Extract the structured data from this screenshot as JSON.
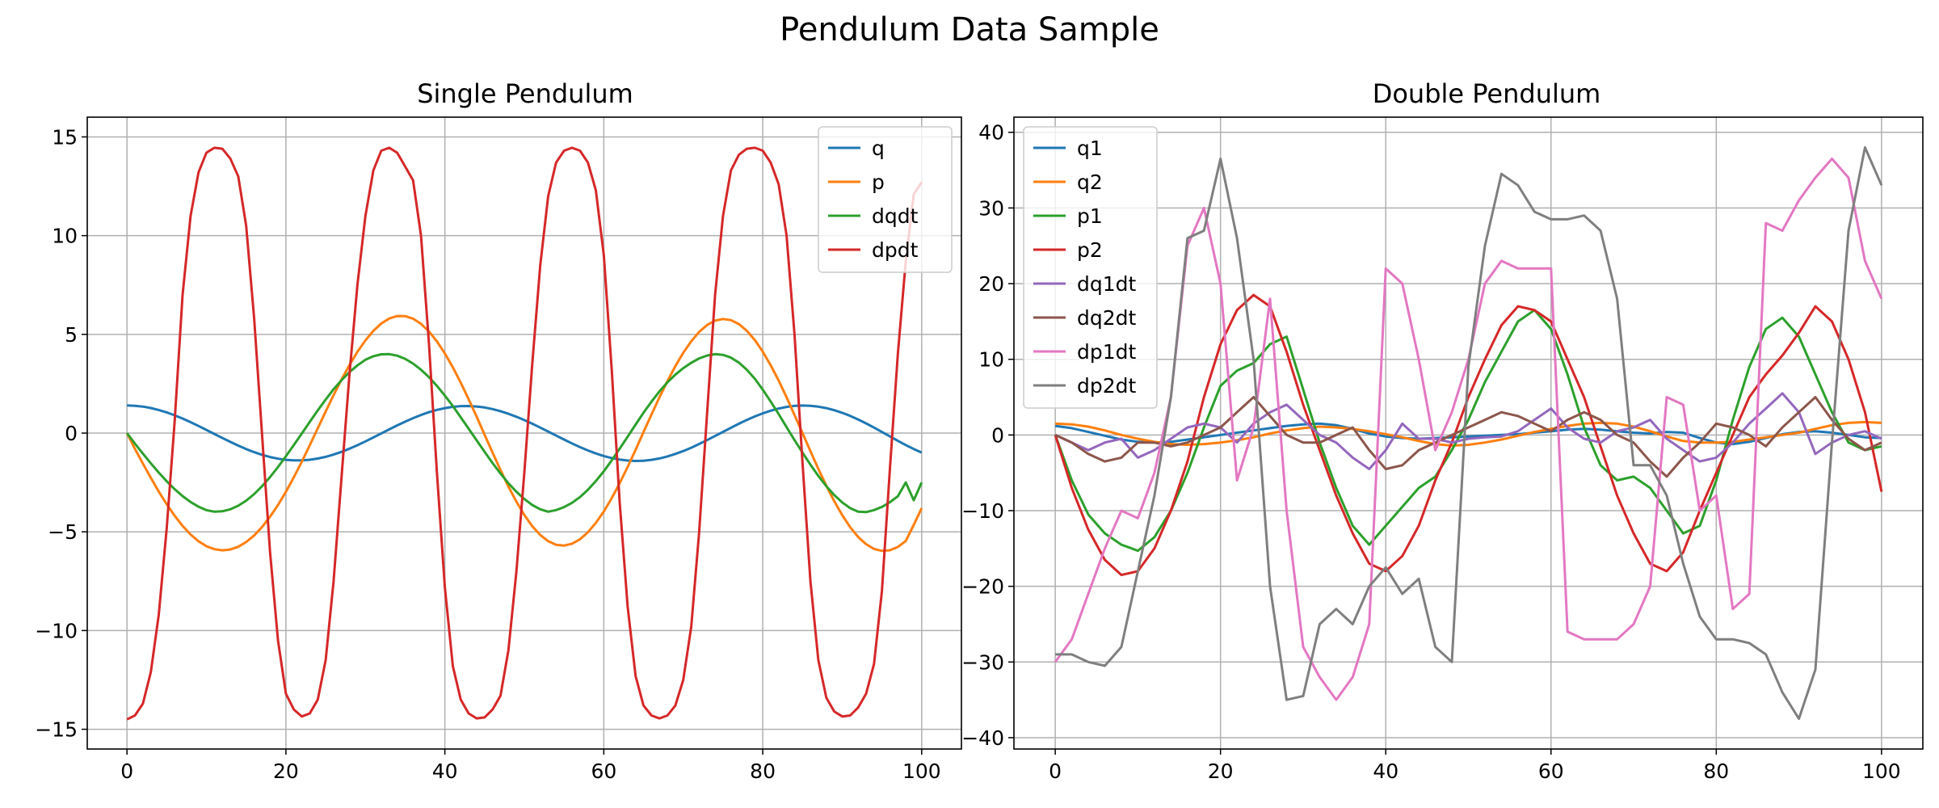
{
  "figure": {
    "title": "Pendulum Data Sample"
  },
  "chart_data": [
    {
      "type": "line",
      "title": "Single Pendulum",
      "xlabel": "",
      "ylabel": "",
      "xlim": [
        -5,
        105
      ],
      "ylim": [
        -16,
        16
      ],
      "xticks": [
        0,
        20,
        40,
        60,
        80,
        100
      ],
      "yticks": [
        -15,
        -10,
        -5,
        0,
        5,
        10,
        15
      ],
      "grid": true,
      "legend_position": "top-right",
      "x": [
        0,
        1,
        2,
        3,
        4,
        5,
        6,
        7,
        8,
        9,
        10,
        11,
        12,
        13,
        14,
        15,
        16,
        17,
        18,
        19,
        20,
        21,
        22,
        23,
        24,
        25,
        26,
        27,
        28,
        29,
        30,
        31,
        32,
        33,
        34,
        35,
        36,
        37,
        38,
        39,
        40,
        41,
        42,
        43,
        44,
        45,
        46,
        47,
        48,
        49,
        50,
        51,
        52,
        53,
        54,
        55,
        56,
        57,
        58,
        59,
        60,
        61,
        62,
        63,
        64,
        65,
        66,
        67,
        68,
        69,
        70,
        71,
        72,
        73,
        74,
        75,
        76,
        77,
        78,
        79,
        80,
        81,
        82,
        83,
        84,
        85,
        86,
        87,
        88,
        89,
        90,
        91,
        92,
        93,
        94,
        95,
        96,
        97,
        98,
        99,
        100
      ],
      "series": [
        {
          "name": "q",
          "color": "#1f77b4",
          "values": [
            1.4,
            1.385,
            1.341,
            1.269,
            1.17,
            1.046,
            0.9,
            0.735,
            0.553,
            0.36,
            0.159,
            -0.046,
            -0.249,
            -0.447,
            -0.635,
            -0.809,
            -0.966,
            -1.101,
            -1.212,
            -1.297,
            -1.355,
            -1.383,
            -1.382,
            -1.351,
            -1.291,
            -1.203,
            -1.089,
            -0.95,
            -0.791,
            -0.613,
            -0.422,
            -0.222,
            -0.017,
            0.188,
            0.388,
            0.579,
            0.757,
            0.918,
            1.058,
            1.175,
            1.266,
            1.33,
            1.365,
            1.371,
            1.348,
            1.296,
            1.216,
            1.11,
            0.98,
            0.828,
            0.658,
            0.474,
            0.278,
            0.076,
            -0.128,
            -0.329,
            -0.525,
            -0.71,
            -0.88,
            -1.031,
            -1.161,
            -1.266,
            -1.344,
            -1.392,
            -1.41,
            -1.398,
            -1.355,
            -1.283,
            -1.183,
            -1.057,
            -0.908,
            -0.739,
            -0.553,
            -0.354,
            -0.148,
            0.063,
            0.271,
            0.473,
            0.665,
            0.842,
            1.0,
            1.135,
            1.245,
            1.326,
            1.377,
            1.397,
            1.384,
            1.34,
            1.265,
            1.16,
            1.028,
            0.87,
            0.69,
            0.491,
            0.278,
            0.056,
            -0.169,
            -0.392,
            -0.606,
            -0.806,
            -0.987
          ]
        },
        {
          "name": "p",
          "color": "#ff7f0e",
          "values": [
            0.0,
            -0.797,
            -1.548,
            -2.269,
            -2.962,
            -3.607,
            -4.186,
            -4.7,
            -5.134,
            -5.48,
            -5.73,
            -5.882,
            -5.938,
            -5.896,
            -5.756,
            -5.518,
            -5.184,
            -4.757,
            -4.241,
            -3.643,
            -2.97,
            -2.233,
            -1.444,
            -0.615,
            0.241,
            1.094,
            1.925,
            2.716,
            3.451,
            4.115,
            4.695,
            5.176,
            5.548,
            5.802,
            5.93,
            5.927,
            5.793,
            5.531,
            5.145,
            4.643,
            4.034,
            3.332,
            2.551,
            1.709,
            0.825,
            -0.082,
            -0.99,
            -1.873,
            -2.709,
            -3.474,
            -4.148,
            -4.714,
            -5.16,
            -5.476,
            -5.656,
            -5.698,
            -5.604,
            -5.377,
            -5.023,
            -4.551,
            -3.971,
            -3.295,
            -2.538,
            -1.716,
            -0.846,
            0.048,
            0.941,
            1.808,
            2.631,
            3.389,
            4.067,
            4.649,
            5.123,
            5.475,
            5.696,
            5.779,
            5.72,
            5.519,
            5.18,
            4.712,
            4.126,
            3.436,
            2.659,
            1.813,
            0.918,
            -0.0,
            -0.917,
            -1.812,
            -2.663,
            -3.451,
            -4.157,
            -4.764,
            -5.258,
            -5.627,
            -5.865,
            -5.966,
            -5.932,
            -5.764,
            -5.467,
            -4.65,
            -3.8
          ]
        },
        {
          "name": "dqdt",
          "color": "#2ca02c",
          "values": [
            0.0,
            -0.534,
            -1.04,
            -1.531,
            -2.003,
            -2.443,
            -2.838,
            -3.19,
            -3.489,
            -3.729,
            -3.904,
            -3.98,
            -3.96,
            -3.86,
            -3.68,
            -3.42,
            -3.09,
            -2.69,
            -2.23,
            -1.72,
            -1.17,
            -0.6,
            -0.02,
            0.57,
            1.15,
            1.7,
            2.22,
            2.68,
            3.09,
            3.43,
            3.71,
            3.89,
            3.99,
            4.0,
            3.92,
            3.76,
            3.52,
            3.21,
            2.83,
            2.39,
            1.9,
            1.37,
            0.8,
            0.22,
            -0.37,
            -0.95,
            -1.52,
            -2.05,
            -2.54,
            -2.97,
            -3.34,
            -3.64,
            -3.86,
            -3.98,
            -3.9,
            -3.75,
            -3.53,
            -3.24,
            -2.87,
            -2.43,
            -1.93,
            -1.38,
            -0.79,
            -0.18,
            0.43,
            1.03,
            1.59,
            2.11,
            2.57,
            2.96,
            3.29,
            3.56,
            3.78,
            3.93,
            4.0,
            3.96,
            3.82,
            3.57,
            3.21,
            2.75,
            2.2,
            1.6,
            0.96,
            0.3,
            -0.35,
            -0.99,
            -1.6,
            -2.17,
            -2.69,
            -3.14,
            -3.51,
            -3.8,
            -3.98,
            -4.0,
            -3.9,
            -3.74,
            -3.5,
            -3.2,
            -2.5,
            -3.4,
            -2.5
          ]
        },
        {
          "name": "dpdt",
          "color": "#d62728",
          "values": [
            -14.5,
            -14.3,
            -13.7,
            -12.1,
            -9.2,
            -4.8,
            0.6,
            7.0,
            11.0,
            13.2,
            14.2,
            14.45,
            14.4,
            13.9,
            13.0,
            10.5,
            5.8,
            -0.1,
            -6.0,
            -10.5,
            -13.2,
            -14.0,
            -14.35,
            -14.2,
            -13.5,
            -11.5,
            -7.5,
            -2.2,
            3.0,
            7.5,
            11.0,
            13.3,
            14.3,
            14.45,
            14.2,
            13.5,
            12.8,
            10.0,
            4.5,
            -2.0,
            -7.8,
            -11.8,
            -13.5,
            -14.2,
            -14.45,
            -14.4,
            -14.0,
            -13.3,
            -11.0,
            -7.0,
            -2.0,
            3.5,
            8.5,
            12.0,
            13.7,
            14.3,
            14.45,
            14.3,
            13.7,
            12.3,
            9.0,
            3.2,
            -3.5,
            -8.8,
            -12.3,
            -13.8,
            -14.3,
            -14.45,
            -14.3,
            -13.8,
            -12.5,
            -9.8,
            -5.0,
            1.0,
            7.0,
            11.0,
            13.3,
            14.1,
            14.4,
            14.45,
            14.3,
            13.7,
            12.6,
            10.0,
            5.0,
            -1.5,
            -7.5,
            -11.5,
            -13.4,
            -14.1,
            -14.35,
            -14.3,
            -13.9,
            -13.2,
            -11.7,
            -8.0,
            -1.8,
            4.0,
            8.7,
            12.1,
            12.7
          ]
        }
      ]
    },
    {
      "type": "line",
      "title": "Double Pendulum",
      "xlabel": "",
      "ylabel": "",
      "xlim": [
        -5,
        105
      ],
      "ylim": [
        -41.5,
        42
      ],
      "xticks": [
        0,
        20,
        40,
        60,
        80,
        100
      ],
      "yticks": [
        -40,
        -30,
        -20,
        -10,
        0,
        10,
        20,
        30,
        40
      ],
      "grid": true,
      "legend_position": "top-left",
      "x": [
        0,
        2,
        4,
        6,
        8,
        10,
        12,
        14,
        16,
        18,
        20,
        22,
        24,
        26,
        28,
        30,
        32,
        34,
        36,
        38,
        40,
        42,
        44,
        46,
        48,
        50,
        52,
        54,
        56,
        58,
        60,
        62,
        64,
        66,
        68,
        70,
        72,
        74,
        76,
        78,
        80,
        82,
        84,
        86,
        88,
        90,
        92,
        94,
        96,
        98,
        100
      ],
      "series": [
        {
          "name": "q1",
          "color": "#1f77b4",
          "values": [
            1.2,
            0.9,
            0.4,
            -0.1,
            -0.6,
            -0.9,
            -1.0,
            -0.9,
            -0.6,
            -0.3,
            0.0,
            0.3,
            0.6,
            0.9,
            1.2,
            1.4,
            1.5,
            1.3,
            0.8,
            0.2,
            -0.2,
            -0.4,
            -0.5,
            -0.4,
            -0.3,
            -0.2,
            -0.1,
            0.0,
            0.1,
            0.3,
            0.5,
            0.7,
            0.8,
            0.7,
            0.5,
            0.3,
            0.2,
            0.4,
            0.3,
            -0.4,
            -1.0,
            -1.2,
            -0.9,
            -0.4,
            0.1,
            0.4,
            0.5,
            0.3,
            0.0,
            -0.3,
            -0.4
          ]
        },
        {
          "name": "q2",
          "color": "#ff7f0e",
          "values": [
            1.5,
            1.4,
            1.1,
            0.6,
            0.0,
            -0.5,
            -0.9,
            -1.2,
            -1.3,
            -1.2,
            -1.0,
            -0.7,
            -0.3,
            0.2,
            0.6,
            0.9,
            1.1,
            1.0,
            0.8,
            0.5,
            0.1,
            -0.3,
            -0.8,
            -1.2,
            -1.4,
            -1.3,
            -1.0,
            -0.6,
            -0.1,
            0.4,
            0.8,
            1.2,
            1.5,
            1.6,
            1.5,
            1.1,
            0.5,
            -0.2,
            -0.8,
            -1.0,
            -1.0,
            -0.9,
            -0.6,
            -0.3,
            0.0,
            0.3,
            0.8,
            1.3,
            1.6,
            1.7,
            1.6
          ]
        },
        {
          "name": "p1",
          "color": "#2ca02c",
          "values": [
            0.0,
            -6.0,
            -10.5,
            -13.0,
            -14.5,
            -15.3,
            -13.5,
            -10.0,
            -5.0,
            1.0,
            6.5,
            8.5,
            9.5,
            12.0,
            13.0,
            6.0,
            -1.0,
            -7.0,
            -12.0,
            -14.5,
            -12.0,
            -9.5,
            -7.0,
            -5.5,
            -2.0,
            2.0,
            7.0,
            11.0,
            15.0,
            16.5,
            14.0,
            8.0,
            1.0,
            -4.0,
            -6.0,
            -5.5,
            -7.0,
            -10.0,
            -13.0,
            -12.0,
            -6.0,
            2.0,
            9.0,
            14.0,
            15.5,
            13.0,
            8.0,
            3.0,
            -1.0,
            -2.0,
            -1.5
          ]
        },
        {
          "name": "p2",
          "color": "#d62728",
          "values": [
            0.0,
            -7.0,
            -12.5,
            -16.5,
            -18.5,
            -18.0,
            -15.0,
            -10.0,
            -3.5,
            5.0,
            12.0,
            16.5,
            18.5,
            17.0,
            11.0,
            4.0,
            -2.0,
            -8.0,
            -13.0,
            -17.0,
            -18.0,
            -16.0,
            -12.0,
            -6.0,
            -1.0,
            5.0,
            10.0,
            14.5,
            17.0,
            16.5,
            15.0,
            10.0,
            5.0,
            -1.5,
            -8.0,
            -13.0,
            -17.0,
            -18.0,
            -15.5,
            -10.0,
            -5.0,
            0.0,
            5.0,
            8.0,
            10.5,
            13.5,
            17.0,
            15.0,
            10.0,
            3.0,
            -7.5
          ]
        },
        {
          "name": "dq1dt",
          "color": "#9467bd",
          "values": [
            0.0,
            -1.0,
            -2.0,
            -1.0,
            -0.5,
            -3.0,
            -2.0,
            -0.5,
            1.0,
            1.5,
            1.0,
            -1.0,
            1.5,
            3.0,
            4.0,
            2.0,
            0.0,
            -1.0,
            -3.0,
            -4.5,
            -2.0,
            1.5,
            -0.5,
            -0.5,
            -1.0,
            -0.5,
            -0.3,
            -0.2,
            0.5,
            2.0,
            3.5,
            1.0,
            -0.5,
            -1.0,
            0.5,
            1.0,
            2.0,
            -0.5,
            -2.0,
            -3.5,
            -3.0,
            -1.0,
            1.5,
            3.5,
            5.5,
            3.0,
            -2.5,
            -1.0,
            0.0,
            0.5,
            -0.5
          ]
        },
        {
          "name": "dq2dt",
          "color": "#8c564b",
          "values": [
            0.0,
            -1.0,
            -2.5,
            -3.5,
            -3.0,
            -1.0,
            -1.0,
            -1.5,
            -1.0,
            0.0,
            1.0,
            3.0,
            5.0,
            2.5,
            0.0,
            -1.0,
            -1.0,
            0.0,
            1.0,
            -2.0,
            -4.5,
            -4.0,
            -2.0,
            -1.0,
            0.0,
            1.0,
            2.0,
            3.0,
            2.5,
            1.5,
            0.5,
            2.0,
            3.0,
            2.0,
            0.0,
            -1.0,
            -3.5,
            -5.5,
            -3.0,
            -1.0,
            1.5,
            1.0,
            0.0,
            -1.5,
            1.0,
            3.0,
            5.0,
            2.0,
            -0.5,
            -2.0,
            -1.0
          ]
        },
        {
          "name": "dp1dt",
          "color": "#e377c2",
          "values": [
            -30.0,
            -27.0,
            -21.0,
            -15.0,
            -10.0,
            -11.0,
            -5.0,
            5.0,
            25.0,
            30.0,
            20.0,
            -6.0,
            1.0,
            18.0,
            -10.0,
            -28.0,
            -32.0,
            -35.0,
            -32.0,
            -25.0,
            22.0,
            20.0,
            10.0,
            -2.0,
            3.0,
            10.0,
            20.0,
            23.0,
            22.0,
            22.0,
            22.0,
            -26.0,
            -27.0,
            -27.0,
            -27.0,
            -25.0,
            -20.0,
            5.0,
            4.0,
            -10.0,
            -8.0,
            -23.0,
            -21.0,
            28.0,
            27.0,
            31.0,
            34.0,
            36.5,
            34.0,
            23.0,
            18.0
          ]
        },
        {
          "name": "dp2dt",
          "color": "#7f7f7f",
          "values": [
            -29.0,
            -29.0,
            -30.0,
            -30.5,
            -28.0,
            -18.0,
            -8.0,
            5.0,
            26.0,
            27.0,
            36.5,
            26.0,
            10.0,
            -20.0,
            -35.0,
            -34.5,
            -25.0,
            -23.0,
            -25.0,
            -20.0,
            -17.5,
            -21.0,
            -19.0,
            -28.0,
            -30.0,
            9.0,
            25.0,
            34.5,
            33.0,
            29.5,
            28.5,
            28.5,
            29.0,
            27.0,
            18.0,
            -4.0,
            -4.0,
            -8.0,
            -17.0,
            -24.0,
            -27.0,
            -27.0,
            -27.5,
            -29.0,
            -34.0,
            -37.5,
            -31.0,
            -1.0,
            27.0,
            38.0,
            33.0
          ]
        }
      ]
    }
  ]
}
